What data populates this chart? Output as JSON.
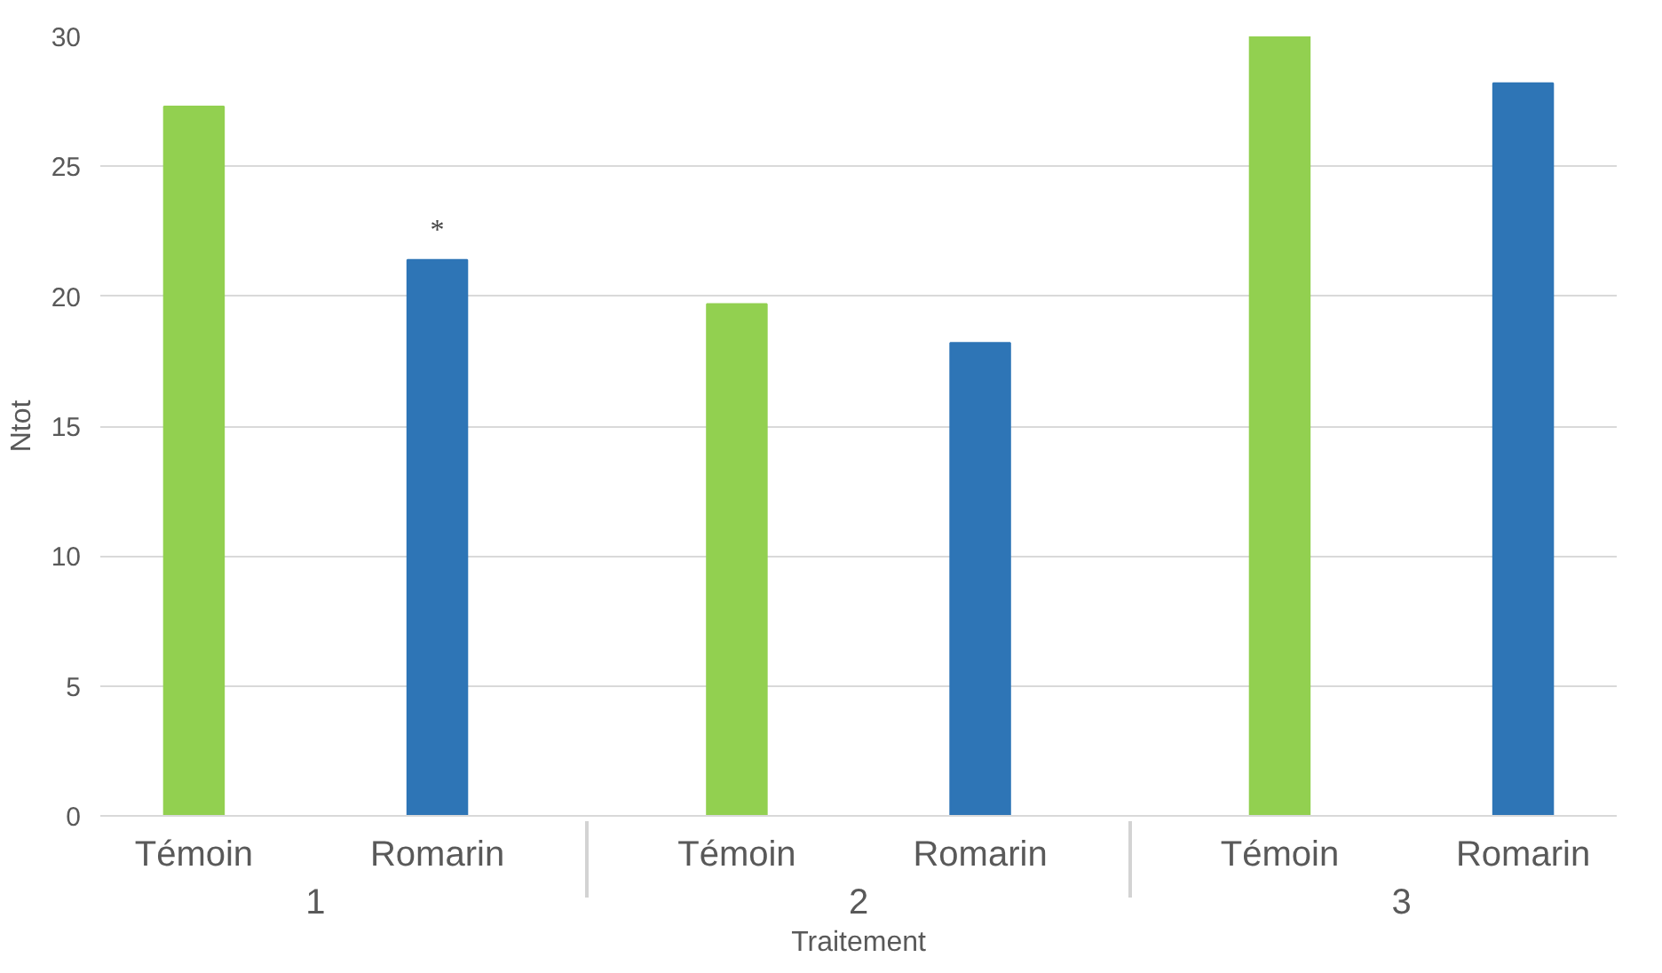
{
  "chart_data": {
    "type": "bar",
    "xlabel": "Traitement",
    "ylabel": "Ntot",
    "categories": [
      "Témoin",
      "Romarin",
      "Témoin",
      "Romarin",
      "Témoin",
      "Romarin"
    ],
    "values": [
      27.3,
      21.4,
      19.7,
      18.2,
      30.0,
      28.2
    ],
    "colors": [
      "#92d050",
      "#2e75b6",
      "#92d050",
      "#2e75b6",
      "#92d050",
      "#2e75b6"
    ],
    "value_labels": [
      null,
      "*",
      null,
      null,
      null,
      null
    ],
    "annotations": [
      "1",
      "2",
      "3"
    ],
    "ylim": [
      0,
      30
    ],
    "yticks": [
      0,
      5,
      10,
      15,
      20,
      25,
      30
    ],
    "grid": "y"
  }
}
